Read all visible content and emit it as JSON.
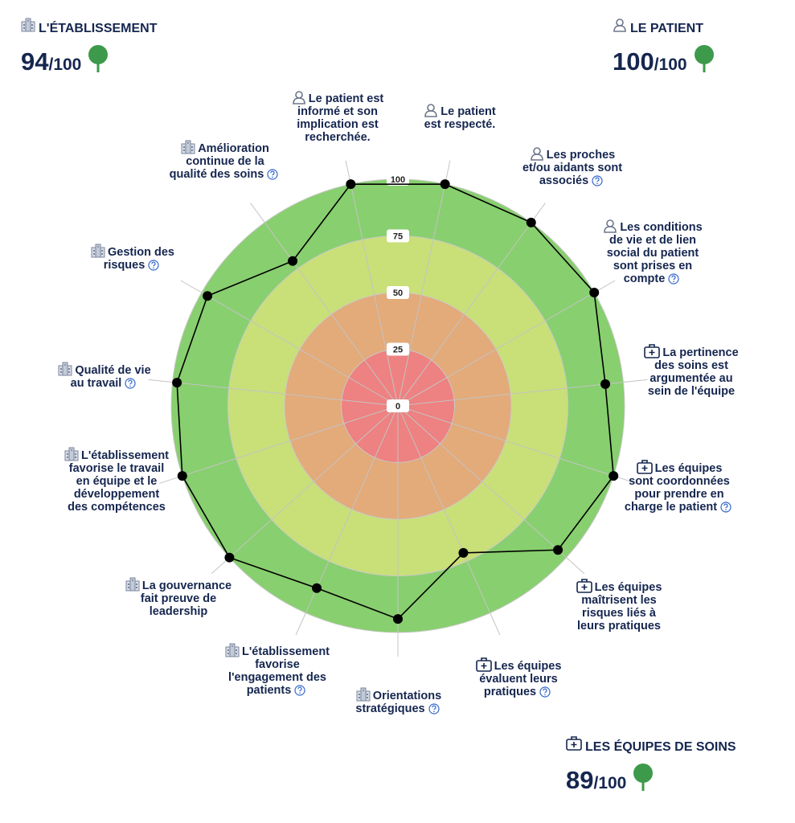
{
  "scores": [
    {
      "title": "L'ÉTABLISSEMENT",
      "value": 94,
      "denominator": "/100"
    },
    {
      "title": "LE PATIENT",
      "value": 100,
      "denominator": "/100"
    },
    {
      "title": "LES ÉQUIPES DE SOINS",
      "value": 89,
      "denominator": "/100"
    }
  ],
  "chart_data": {
    "type": "radar",
    "categories": [
      "Le patient est respecté.",
      "Les proches et/ou aidants sont associés",
      "Les conditions de vie et de lien social du patient sont prises en compte",
      "La pertinence des soins est argumentée au sein de l'équipe",
      "Les équipes sont coordonnées pour prendre en charge le patient",
      "Les équipes maîtrisent les risques liés à leurs pratiques",
      "Les équipes évaluent leurs pratiques",
      "Orientations stratégiques",
      "L'établissement favorise l'engagement des patients",
      "La gouvernance fait preuve de leadership",
      "L'établissement favorise le travail en équipe et le développement des compétences",
      "Qualité de vie au travail",
      "Gestion des risques",
      "Amélioration continue de la qualité des soins",
      "Le patient est informé et son implication est recherchée."
    ],
    "values": [
      100,
      100,
      100,
      92,
      100,
      95,
      71,
      94,
      88,
      100,
      100,
      98,
      97,
      79,
      100
    ],
    "color": "#000000",
    "rlim": [
      0,
      100
    ],
    "rticks": [
      0,
      25,
      50,
      75,
      100
    ],
    "band_colors": [
      "#ee8181",
      "#e3aa7a",
      "#c9df78",
      "#88cf6f"
    ],
    "grid": true
  }
}
